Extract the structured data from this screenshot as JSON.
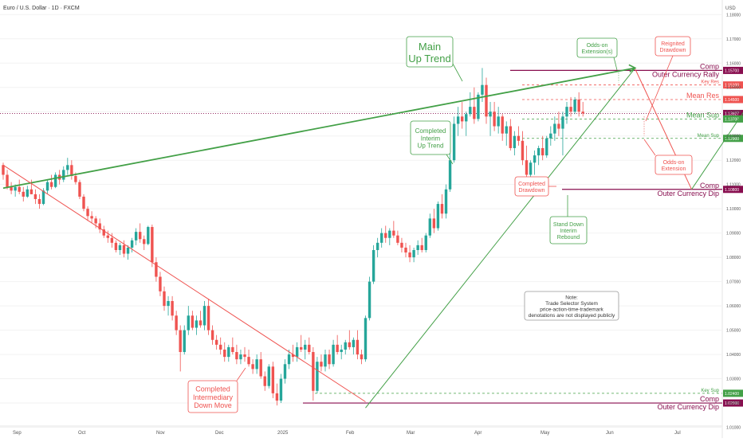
{
  "chart_data": {
    "type": "candlestick",
    "title": "Euro / U.S. Dollar · 1D · FXCM",
    "currency": "USD",
    "x_axis": [
      "Sep",
      "Oct",
      "Nov",
      "Dec",
      "2025",
      "Feb",
      "Mar",
      "Apr",
      "May",
      "Jun",
      "Jul"
    ],
    "y_ticks": [
      "1.18000",
      "1.17000",
      "1.16000",
      "1.15000",
      "1.14000",
      "1.13000",
      "1.12000",
      "1.11000",
      "1.10000",
      "1.09000",
      "1.08000",
      "1.07000",
      "1.06000",
      "1.05000",
      "1.04000",
      "1.03000",
      "1.02000",
      "1.01000"
    ],
    "ylim": [
      1.0105,
      1.186
    ],
    "colors": {
      "up": "#26a69a",
      "down": "#ef5350",
      "purple": "#880e4f",
      "green_line": "#43a047",
      "red_line": "#e53935"
    },
    "levels": [
      {
        "label": "Comp",
        "label2": "Outer Currency Rally",
        "value": 1.157,
        "tag": "1.15700",
        "color": "#880e4f",
        "style": "solid"
      },
      {
        "label": "Key Res",
        "value": 1.151,
        "tag": "1.15100",
        "color": "#ef5350",
        "style": "dashed"
      },
      {
        "label": "Mean Res",
        "value": 1.145,
        "tag": "1.14500",
        "color": "#ef5350",
        "style": "dashed"
      },
      {
        "label": "",
        "value": 1.13927,
        "tag": "1.13927",
        "color": "#880e4f",
        "style": "dotted"
      },
      {
        "label": "Mean Sup",
        "value": 1.137,
        "tag": "1.13700",
        "color": "#43a047",
        "style": "dashed"
      },
      {
        "label": "Mean Sup",
        "value": 1.129,
        "tag": "1.12900",
        "color": "#43a047",
        "style": "dashed"
      },
      {
        "label": "Comp",
        "label2": "Outer Currency Dip",
        "value": 1.108,
        "tag": "1.10800",
        "color": "#880e4f",
        "style": "solid"
      },
      {
        "label": "Key Sup",
        "value": 1.024,
        "tag": "1.02400",
        "color": "#43a047",
        "style": "dashed"
      },
      {
        "label": "Comp",
        "label2": "Outer Currency Dip",
        "value": 1.02,
        "tag": "1.02000",
        "color": "#880e4f",
        "style": "solid"
      }
    ],
    "trendlines": [
      {
        "name": "main-up-trend",
        "x": [
          0,
          157
        ],
        "y": [
          1.1085,
          1.158
        ],
        "color": "#43a047"
      },
      {
        "name": "interim-up-trend",
        "x": [
          90,
          157
        ],
        "y": [
          1.018,
          1.158
        ],
        "color": "#43a047"
      },
      {
        "name": "intermediary-down",
        "x": [
          0,
          90
        ],
        "y": [
          1.118,
          1.0205
        ],
        "color": "#ef5350"
      },
      {
        "name": "interim-drawdown",
        "x": [
          157,
          171
        ],
        "y": [
          1.1575,
          1.108
        ],
        "color": "#ef5350"
      },
      {
        "name": "interim-rebound",
        "x": [
          171,
          188
        ],
        "y": [
          1.108,
          1.15
        ],
        "color": "#43a047"
      }
    ],
    "annotations": [
      {
        "name": "main-up-trend-label",
        "lines": [
          "Main",
          "Up Trend"
        ],
        "color": "#43a047"
      },
      {
        "name": "completed-interim-up-trend-label",
        "lines": [
          "Completed",
          "Interim",
          "Up Trend"
        ],
        "color": "#43a047"
      },
      {
        "name": "completed-intermediary-down-move-label",
        "lines": [
          "Completed",
          "Intermediary",
          "Down Move"
        ],
        "color": "#ef5350"
      },
      {
        "name": "completed-drawdown-label",
        "lines": [
          "Completed",
          "Drawdown"
        ],
        "color": "#ef5350"
      },
      {
        "name": "stand-down-interim-rebound-label",
        "lines": [
          "Stand Down",
          "Interim",
          "Rebound"
        ],
        "color": "#43a047"
      },
      {
        "name": "odds-on-extensions-label",
        "lines": [
          "Odds-on",
          "Extension(s)"
        ],
        "color": "#43a047"
      },
      {
        "name": "reignited-drawdown-label",
        "lines": [
          "Reignited",
          "Drawdown"
        ],
        "color": "#ef5350"
      },
      {
        "name": "odds-on-extension-label",
        "lines": [
          "Odds-on",
          "Extension"
        ],
        "color": "#ef5350"
      },
      {
        "name": "note-box",
        "lines": [
          "Note:",
          "Trade Selector System",
          "price-action-time-trademark",
          "denotations are not displayed publicly"
        ],
        "color": "#333333"
      }
    ],
    "candles": [
      [
        1.118,
        1.119,
        1.112,
        1.114
      ],
      [
        1.114,
        1.116,
        1.108,
        1.109
      ],
      [
        1.109,
        1.111,
        1.106,
        1.1075
      ],
      [
        1.1075,
        1.11,
        1.105,
        1.109
      ],
      [
        1.109,
        1.112,
        1.106,
        1.107
      ],
      [
        1.107,
        1.109,
        1.103,
        1.105
      ],
      [
        1.105,
        1.1095,
        1.1045,
        1.108
      ],
      [
        1.108,
        1.112,
        1.106,
        1.106
      ],
      [
        1.106,
        1.108,
        1.102,
        1.104
      ],
      [
        1.104,
        1.106,
        1.1,
        1.102
      ],
      [
        1.102,
        1.1085,
        1.1015,
        1.1075
      ],
      [
        1.1075,
        1.112,
        1.106,
        1.111
      ],
      [
        1.111,
        1.114,
        1.108,
        1.109
      ],
      [
        1.109,
        1.115,
        1.1085,
        1.114
      ],
      [
        1.114,
        1.116,
        1.11,
        1.112
      ],
      [
        1.112,
        1.1175,
        1.111,
        1.116
      ],
      [
        1.116,
        1.121,
        1.114,
        1.118
      ],
      [
        1.118,
        1.12,
        1.112,
        1.1135
      ],
      [
        1.1135,
        1.115,
        1.11,
        1.111
      ],
      [
        1.111,
        1.112,
        1.104,
        1.105
      ],
      [
        1.105,
        1.106,
        1.099,
        1.1
      ],
      [
        1.1,
        1.101,
        1.095,
        1.097
      ],
      [
        1.097,
        1.099,
        1.094,
        1.096
      ],
      [
        1.096,
        1.097,
        1.092,
        1.094
      ],
      [
        1.094,
        1.096,
        1.09,
        1.0915
      ],
      [
        1.0915,
        1.093,
        1.088,
        1.089
      ],
      [
        1.089,
        1.091,
        1.086,
        1.088
      ],
      [
        1.088,
        1.09,
        1.084,
        1.086
      ],
      [
        1.086,
        1.087,
        1.082,
        1.083
      ],
      [
        1.083,
        1.086,
        1.081,
        1.085
      ],
      [
        1.085,
        1.087,
        1.08,
        1.0815
      ],
      [
        1.0815,
        1.085,
        1.079,
        1.084
      ],
      [
        1.084,
        1.088,
        1.082,
        1.087
      ],
      [
        1.087,
        1.092,
        1.085,
        1.0905
      ],
      [
        1.0905,
        1.094,
        1.086,
        1.0875
      ],
      [
        1.0875,
        1.089,
        1.083,
        1.0855
      ],
      [
        1.0855,
        1.093,
        1.085,
        1.0925
      ],
      [
        1.0925,
        1.0935,
        1.076,
        1.078
      ],
      [
        1.078,
        1.08,
        1.07,
        1.072
      ],
      [
        1.072,
        1.074,
        1.064,
        1.066
      ],
      [
        1.066,
        1.068,
        1.058,
        1.06
      ],
      [
        1.06,
        1.064,
        1.056,
        1.062
      ],
      [
        1.062,
        1.064,
        1.054,
        1.056
      ],
      [
        1.056,
        1.058,
        1.048,
        1.05
      ],
      [
        1.05,
        1.052,
        1.033,
        1.041
      ],
      [
        1.041,
        1.052,
        1.04,
        1.05
      ],
      [
        1.05,
        1.06,
        1.048,
        1.056
      ],
      [
        1.056,
        1.058,
        1.05,
        1.051
      ],
      [
        1.051,
        1.056,
        1.048,
        1.054
      ],
      [
        1.054,
        1.058,
        1.051,
        1.052
      ],
      [
        1.052,
        1.062,
        1.05,
        1.06
      ],
      [
        1.06,
        1.063,
        1.048,
        1.05
      ],
      [
        1.05,
        1.052,
        1.044,
        1.046
      ],
      [
        1.046,
        1.048,
        1.042,
        1.044
      ],
      [
        1.044,
        1.047,
        1.04,
        1.042
      ],
      [
        1.042,
        1.045,
        1.037,
        1.039
      ],
      [
        1.039,
        1.044,
        1.037,
        1.043
      ],
      [
        1.043,
        1.047,
        1.04,
        1.041
      ],
      [
        1.041,
        1.044,
        1.036,
        1.038
      ],
      [
        1.038,
        1.042,
        1.036,
        1.04
      ],
      [
        1.04,
        1.043,
        1.037,
        1.039
      ],
      [
        1.039,
        1.042,
        1.035,
        1.036
      ],
      [
        1.036,
        1.038,
        1.032,
        1.034
      ],
      [
        1.034,
        1.04,
        1.032,
        1.038
      ],
      [
        1.038,
        1.041,
        1.03,
        1.031
      ],
      [
        1.031,
        1.033,
        1.025,
        1.027
      ],
      [
        1.027,
        1.036,
        1.026,
        1.035
      ],
      [
        1.035,
        1.037,
        1.022,
        1.024
      ],
      [
        1.024,
        1.028,
        1.019,
        1.021
      ],
      [
        1.021,
        1.032,
        1.02,
        1.03
      ],
      [
        1.03,
        1.038,
        1.028,
        1.036
      ],
      [
        1.036,
        1.042,
        1.034,
        1.04
      ],
      [
        1.04,
        1.044,
        1.037,
        1.039
      ],
      [
        1.039,
        1.045,
        1.037,
        1.043
      ],
      [
        1.043,
        1.048,
        1.041,
        1.042
      ],
      [
        1.042,
        1.046,
        1.038,
        1.044
      ],
      [
        1.044,
        1.047,
        1.04,
        1.041
      ],
      [
        1.041,
        1.043,
        1.021,
        1.025
      ],
      [
        1.025,
        1.039,
        1.024,
        1.037
      ],
      [
        1.037,
        1.04,
        1.033,
        1.035
      ],
      [
        1.035,
        1.042,
        1.033,
        1.04
      ],
      [
        1.04,
        1.042,
        1.034,
        1.036
      ],
      [
        1.036,
        1.046,
        1.035,
        1.044
      ],
      [
        1.044,
        1.048,
        1.04,
        1.041
      ],
      [
        1.041,
        1.044,
        1.038,
        1.042
      ],
      [
        1.042,
        1.046,
        1.04,
        1.045
      ],
      [
        1.045,
        1.05,
        1.042,
        1.043
      ],
      [
        1.043,
        1.047,
        1.04,
        1.046
      ],
      [
        1.046,
        1.05,
        1.038,
        1.04
      ],
      [
        1.04,
        1.042,
        1.036,
        1.038
      ],
      [
        1.038,
        1.056,
        1.037,
        1.055
      ],
      [
        1.055,
        1.072,
        1.054,
        1.07
      ],
      [
        1.07,
        1.085,
        1.069,
        1.083
      ],
      [
        1.083,
        1.088,
        1.08,
        1.086
      ],
      [
        1.086,
        1.092,
        1.084,
        1.09
      ],
      [
        1.09,
        1.093,
        1.086,
        1.088
      ],
      [
        1.088,
        1.092,
        1.085,
        1.091
      ],
      [
        1.091,
        1.095,
        1.088,
        1.089
      ],
      [
        1.089,
        1.091,
        1.085,
        1.086
      ],
      [
        1.086,
        1.088,
        1.082,
        1.084
      ],
      [
        1.084,
        1.086,
        1.08,
        1.082
      ],
      [
        1.082,
        1.085,
        1.078,
        1.08
      ],
      [
        1.08,
        1.084,
        1.078,
        1.083
      ],
      [
        1.083,
        1.087,
        1.081,
        1.085
      ],
      [
        1.085,
        1.088,
        1.082,
        1.083
      ],
      [
        1.083,
        1.09,
        1.082,
        1.089
      ],
      [
        1.089,
        1.098,
        1.088,
        1.096
      ],
      [
        1.096,
        1.1,
        1.09,
        1.092
      ],
      [
        1.092,
        1.103,
        1.091,
        1.102
      ],
      [
        1.102,
        1.106,
        1.096,
        1.098
      ],
      [
        1.098,
        1.11,
        1.096,
        1.108
      ],
      [
        1.108,
        1.123,
        1.107,
        1.12
      ],
      [
        1.12,
        1.138,
        1.119,
        1.135
      ],
      [
        1.135,
        1.142,
        1.13,
        1.138
      ],
      [
        1.138,
        1.144,
        1.133,
        1.136
      ],
      [
        1.136,
        1.14,
        1.13,
        1.139
      ],
      [
        1.139,
        1.148,
        1.138,
        1.142
      ],
      [
        1.142,
        1.15,
        1.135,
        1.137
      ],
      [
        1.137,
        1.148,
        1.136,
        1.147
      ],
      [
        1.147,
        1.158,
        1.144,
        1.151
      ],
      [
        1.151,
        1.154,
        1.135,
        1.138
      ],
      [
        1.138,
        1.144,
        1.13,
        1.14
      ],
      [
        1.14,
        1.144,
        1.132,
        1.134
      ],
      [
        1.134,
        1.142,
        1.131,
        1.138
      ],
      [
        1.138,
        1.139,
        1.128,
        1.131
      ],
      [
        1.131,
        1.136,
        1.126,
        1.134
      ],
      [
        1.134,
        1.137,
        1.124,
        1.125
      ],
      [
        1.125,
        1.132,
        1.122,
        1.13
      ],
      [
        1.13,
        1.134,
        1.126,
        1.128
      ],
      [
        1.128,
        1.132,
        1.118,
        1.12
      ],
      [
        1.12,
        1.126,
        1.11,
        1.114
      ],
      [
        1.114,
        1.12,
        1.108,
        1.119
      ],
      [
        1.119,
        1.124,
        1.114,
        1.122
      ],
      [
        1.122,
        1.126,
        1.118,
        1.125
      ],
      [
        1.125,
        1.13,
        1.12,
        1.122
      ],
      [
        1.122,
        1.13,
        1.121,
        1.129
      ],
      [
        1.129,
        1.134,
        1.126,
        1.131
      ],
      [
        1.131,
        1.138,
        1.128,
        1.135
      ],
      [
        1.135,
        1.14,
        1.13,
        1.133
      ],
      [
        1.133,
        1.14,
        1.122,
        1.138
      ],
      [
        1.138,
        1.144,
        1.135,
        1.142
      ],
      [
        1.142,
        1.146,
        1.138,
        1.14
      ],
      [
        1.14,
        1.146,
        1.139,
        1.145
      ],
      [
        1.145,
        1.148,
        1.138,
        1.14
      ],
      [
        1.14,
        1.144,
        1.138,
        1.1393
      ]
    ]
  }
}
